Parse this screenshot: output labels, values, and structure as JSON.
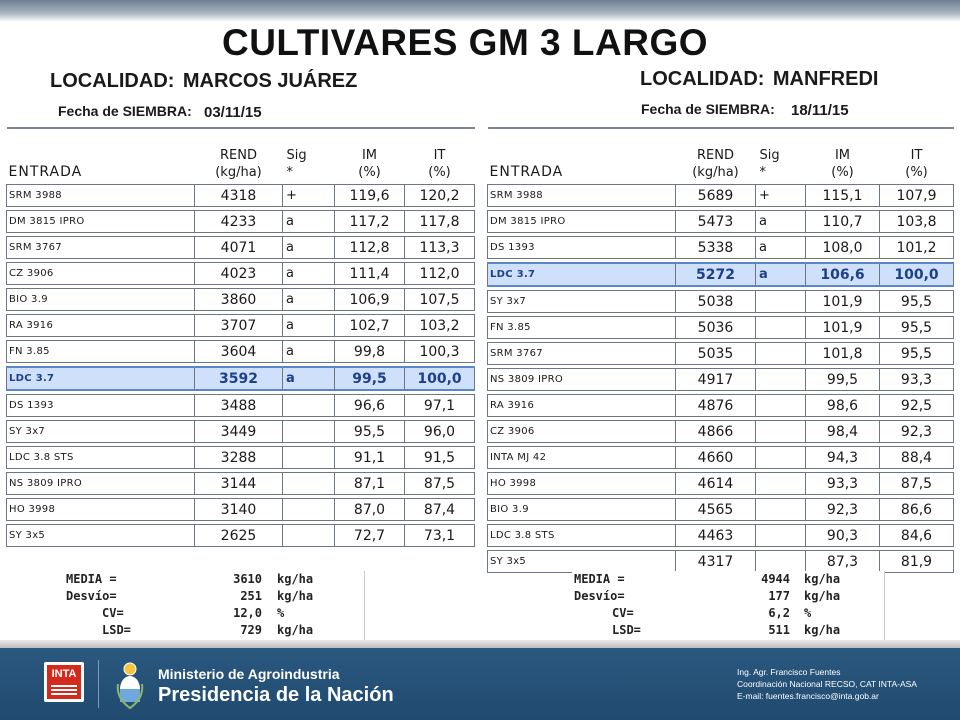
{
  "title": "CULTIVARES GM 3 LARGO",
  "left": {
    "localidad_label": "LOCALIDAD:",
    "localidad": "MARCOS JUÁREZ",
    "fecha_label": "Fecha de SIEMBRA:",
    "fecha": "03/11/15",
    "headers": {
      "entrada": "ENTRADA",
      "rend1": "REND",
      "rend2": "(kg/ha)",
      "sig1": "Sig",
      "sig2": "*",
      "im1": "IM",
      "im2": "(%)",
      "it1": "IT",
      "it2": "(%)"
    },
    "rows": [
      {
        "entrada": "SRM 3988",
        "rend": "4318",
        "sig": "+",
        "im": "119,6",
        "it": "120,2"
      },
      {
        "entrada": "DM 3815 IPRO",
        "rend": "4233",
        "sig": "a",
        "im": "117,2",
        "it": "117,8"
      },
      {
        "entrada": "SRM 3767",
        "rend": "4071",
        "sig": "a",
        "im": "112,8",
        "it": "113,3"
      },
      {
        "entrada": "CZ 3906",
        "rend": "4023",
        "sig": "a",
        "im": "111,4",
        "it": "112,0"
      },
      {
        "entrada": "BIO 3.9",
        "rend": "3860",
        "sig": "a",
        "im": "106,9",
        "it": "107,5"
      },
      {
        "entrada": "RA 3916",
        "rend": "3707",
        "sig": "a",
        "im": "102,7",
        "it": "103,2"
      },
      {
        "entrada": "FN 3.85",
        "rend": "3604",
        "sig": "a",
        "im": "99,8",
        "it": "100,3"
      },
      {
        "entrada": "LDC 3.7",
        "rend": "3592",
        "sig": "a",
        "im": "99,5",
        "it": "100,0",
        "highlight": true
      },
      {
        "entrada": "DS 1393",
        "rend": "3488",
        "sig": "",
        "im": "96,6",
        "it": "97,1"
      },
      {
        "entrada": "SY 3x7",
        "rend": "3449",
        "sig": "",
        "im": "95,5",
        "it": "96,0"
      },
      {
        "entrada": "LDC 3.8 STS",
        "rend": "3288",
        "sig": "",
        "im": "91,1",
        "it": "91,5"
      },
      {
        "entrada": "NS 3809 IPRO",
        "rend": "3144",
        "sig": "",
        "im": "87,1",
        "it": "87,5"
      },
      {
        "entrada": "HO 3998",
        "rend": "3140",
        "sig": "",
        "im": "87,0",
        "it": "87,4"
      },
      {
        "entrada": "SY 3x5",
        "rend": "2625",
        "sig": "",
        "im": "72,7",
        "it": "73,1"
      }
    ],
    "stats": [
      {
        "label": "MEDIA =",
        "value": "3610",
        "unit": "kg/ha"
      },
      {
        "label": "Desvío=",
        "value": "251",
        "unit": "kg/ha"
      },
      {
        "label": "CV=",
        "value": "12,0",
        "unit": "%"
      },
      {
        "label": "LSD=",
        "value": "729",
        "unit": "kg/ha"
      }
    ]
  },
  "right": {
    "localidad_label": "LOCALIDAD:",
    "localidad": "MANFREDI",
    "fecha_label": "Fecha de SIEMBRA:",
    "fecha": "18/11/15",
    "headers": {
      "entrada": "ENTRADA",
      "rend1": "REND",
      "rend2": "(kg/ha)",
      "sig1": "Sig",
      "sig2": "*",
      "im1": "IM",
      "im2": "(%)",
      "it1": "IT",
      "it2": "(%)"
    },
    "rows": [
      {
        "entrada": "SRM 3988",
        "rend": "5689",
        "sig": "+",
        "im": "115,1",
        "it": "107,9"
      },
      {
        "entrada": "DM 3815 IPRO",
        "rend": "5473",
        "sig": "a",
        "im": "110,7",
        "it": "103,8"
      },
      {
        "entrada": "DS 1393",
        "rend": "5338",
        "sig": "a",
        "im": "108,0",
        "it": "101,2"
      },
      {
        "entrada": "LDC 3.7",
        "rend": "5272",
        "sig": "a",
        "im": "106,6",
        "it": "100,0",
        "highlight": true
      },
      {
        "entrada": "SY 3x7",
        "rend": "5038",
        "sig": "",
        "im": "101,9",
        "it": "95,5"
      },
      {
        "entrada": "FN 3.85",
        "rend": "5036",
        "sig": "",
        "im": "101,9",
        "it": "95,5"
      },
      {
        "entrada": "SRM 3767",
        "rend": "5035",
        "sig": "",
        "im": "101,8",
        "it": "95,5"
      },
      {
        "entrada": "NS 3809 IPRO",
        "rend": "4917",
        "sig": "",
        "im": "99,5",
        "it": "93,3"
      },
      {
        "entrada": "RA 3916",
        "rend": "4876",
        "sig": "",
        "im": "98,6",
        "it": "92,5"
      },
      {
        "entrada": "CZ 3906",
        "rend": "4866",
        "sig": "",
        "im": "98,4",
        "it": "92,3"
      },
      {
        "entrada": "INTA MJ 42",
        "rend": "4660",
        "sig": "",
        "im": "94,3",
        "it": "88,4"
      },
      {
        "entrada": "HO 3998",
        "rend": "4614",
        "sig": "",
        "im": "93,3",
        "it": "87,5"
      },
      {
        "entrada": "BIO 3.9",
        "rend": "4565",
        "sig": "",
        "im": "92,3",
        "it": "86,6"
      },
      {
        "entrada": "LDC 3.8 STS",
        "rend": "4463",
        "sig": "",
        "im": "90,3",
        "it": "84,6"
      },
      {
        "entrada": "SY 3x5",
        "rend": "4317",
        "sig": "",
        "im": "87,3",
        "it": "81,9"
      }
    ],
    "stats": [
      {
        "label": "MEDIA =",
        "value": "4944",
        "unit": "kg/ha"
      },
      {
        "label": "Desvío=",
        "value": "177",
        "unit": "kg/ha"
      },
      {
        "label": "CV=",
        "value": "6,2",
        "unit": "%"
      },
      {
        "label": "LSD=",
        "value": "511",
        "unit": "kg/ha"
      }
    ]
  },
  "footer": {
    "logo_text": "INTA",
    "ministry": "Ministerio de Agroindustria",
    "presidencia": "Presidencia de la Nación",
    "credits": [
      "Ing. Agr. Francisco Fuentes",
      "Coordinación Nacional RECSO, CAT INTA-ASA",
      "E-mail: fuentes.francisco@inta.gob.ar"
    ],
    "brand_color": "#204a70",
    "highlight_color": "#cfe0fa"
  }
}
